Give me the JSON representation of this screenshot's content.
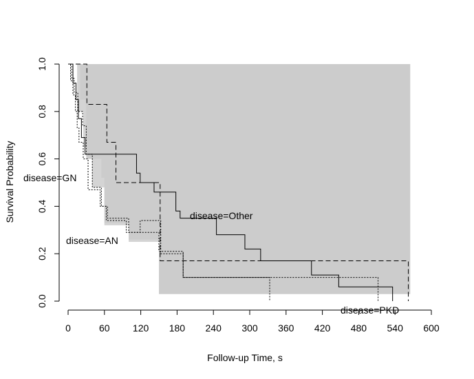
{
  "chart_data": {
    "type": "line",
    "subtype": "kaplan-meier survival curves with confidence bands",
    "title": "",
    "xlabel": "Follow-up Time, s",
    "ylabel": "Survival Probability",
    "xlim": [
      0,
      600
    ],
    "ylim": [
      0,
      1
    ],
    "xticks": [
      0,
      60,
      120,
      180,
      240,
      300,
      360,
      420,
      480,
      540,
      600
    ],
    "yticks": [
      0.0,
      0.2,
      0.4,
      0.6,
      0.8,
      1.0
    ],
    "grid": false,
    "legend": "none (curves labelled directly)",
    "series": [
      {
        "name": "disease=Other",
        "label_text": "disease=Other",
        "line_style": "solid",
        "steps": [
          [
            0,
            1.0
          ],
          [
            8,
            0.92
          ],
          [
            13,
            0.85
          ],
          [
            17,
            0.77
          ],
          [
            22,
            0.69
          ],
          [
            28,
            0.62
          ],
          [
            113,
            0.54
          ],
          [
            119,
            0.5
          ],
          [
            142,
            0.46
          ],
          [
            178,
            0.38
          ],
          [
            185,
            0.35
          ],
          [
            245,
            0.28
          ],
          [
            292,
            0.22
          ],
          [
            318,
            0.17
          ],
          [
            402,
            0.11
          ],
          [
            447,
            0.06
          ],
          [
            536,
            0.0
          ]
        ],
        "band": [
          [
            0,
            1.0,
            1.0
          ],
          [
            20,
            0.85,
            1.0
          ],
          [
            30,
            0.6,
            1.0
          ],
          [
            60,
            0.33,
            1.0
          ],
          [
            100,
            0.26,
            1.0
          ],
          [
            150,
            0.03,
            1.0
          ],
          [
            565,
            0.03,
            1.0
          ]
        ]
      },
      {
        "name": "disease=GN",
        "label_text": "disease=GN",
        "line_style": "dotted",
        "steps": [
          [
            0,
            1.0
          ],
          [
            4,
            0.93
          ],
          [
            8,
            0.87
          ],
          [
            12,
            0.8
          ],
          [
            15,
            0.73
          ],
          [
            18,
            0.67
          ],
          [
            25,
            0.6
          ],
          [
            33,
            0.47
          ],
          [
            53,
            0.4
          ],
          [
            63,
            0.34
          ],
          [
            96,
            0.29
          ],
          [
            119,
            0.34
          ],
          [
            130,
            0.34
          ],
          [
            153,
            0.2
          ],
          [
            190,
            0.1
          ],
          [
            333,
            0.0
          ]
        ],
        "band": [
          [
            0,
            1.0,
            1.0
          ],
          [
            15,
            0.8,
            1.0
          ],
          [
            25,
            0.65,
            1.0
          ],
          [
            40,
            0.48,
            1.0
          ],
          [
            60,
            0.32,
            1.0
          ],
          [
            100,
            0.25,
            1.0
          ],
          [
            200,
            0.02,
            1.0
          ]
        ]
      },
      {
        "name": "disease=AN",
        "label_text": "disease=AN",
        "line_style": "dotted",
        "steps": [
          [
            0,
            1.0
          ],
          [
            6,
            0.94
          ],
          [
            10,
            0.88
          ],
          [
            16,
            0.8
          ],
          [
            24,
            0.74
          ],
          [
            30,
            0.62
          ],
          [
            40,
            0.48
          ],
          [
            55,
            0.4
          ],
          [
            65,
            0.35
          ],
          [
            100,
            0.29
          ],
          [
            150,
            0.21
          ],
          [
            190,
            0.1
          ],
          [
            512,
            0.0
          ]
        ],
        "band": [
          [
            0,
            1.0,
            1.0
          ],
          [
            15,
            0.8,
            1.0
          ],
          [
            25,
            0.65,
            1.0
          ],
          [
            40,
            0.48,
            1.0
          ],
          [
            60,
            0.32,
            1.0
          ],
          [
            100,
            0.25,
            1.0
          ],
          [
            200,
            0.02,
            1.0
          ]
        ]
      },
      {
        "name": "disease=PKD",
        "label_text": "disease=PKD",
        "line_style": "dashed",
        "steps": [
          [
            0,
            1.0
          ],
          [
            31,
            0.83
          ],
          [
            64,
            0.67
          ],
          [
            79,
            0.5
          ],
          [
            152,
            0.17
          ],
          [
            562,
            0.0
          ]
        ],
        "band": [
          [
            0,
            1.0,
            1.0
          ],
          [
            30,
            0.72,
            1.0
          ],
          [
            55,
            0.52,
            1.0
          ],
          [
            80,
            0.34,
            1.0
          ],
          [
            150,
            0.03,
            1.0
          ],
          [
            565,
            0.03,
            1.0
          ]
        ]
      }
    ]
  }
}
